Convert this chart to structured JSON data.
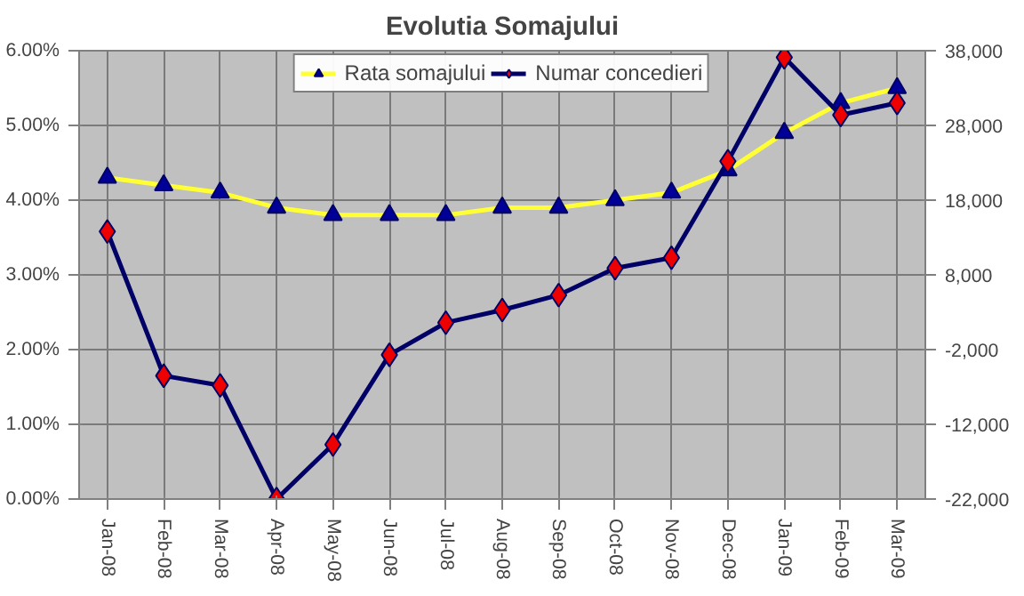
{
  "chart_data": {
    "type": "line",
    "title": "Evolutia Somajului",
    "categories": [
      "Jan-08",
      "Feb-08",
      "Mar-08",
      "Apr-08",
      "May-08",
      "Jun-08",
      "Jul-08",
      "Aug-08",
      "Sep-08",
      "Oct-08",
      "Nov-08",
      "Dec-08",
      "Jan-09",
      "Feb-09",
      "Mar-09"
    ],
    "series": [
      {
        "name": "Rata somajului",
        "color": "#ffff33",
        "marker": "triangle",
        "values": [
          4.3,
          4.2,
          4.1,
          3.9,
          3.8,
          3.8,
          3.8,
          3.9,
          3.9,
          4.0,
          4.1,
          4.4,
          4.9,
          5.3,
          5.5
        ]
      },
      {
        "name": "Numar concedieri",
        "color": "#000066",
        "marker": "diamond",
        "axis": "y2",
        "values": [
          13800,
          -5500,
          -6800,
          -22000,
          -14700,
          -2700,
          1600,
          3300,
          5300,
          8900,
          10300,
          23200,
          37100,
          29400,
          31000
        ]
      }
    ],
    "ylim": [
      0,
      6
    ],
    "yticks": [
      {
        "value": 0,
        "label": "0.00%"
      },
      {
        "value": 1,
        "label": "1.00%"
      },
      {
        "value": 2,
        "label": "2.00%"
      },
      {
        "value": 3,
        "label": "3.00%"
      },
      {
        "value": 4,
        "label": "4.00%"
      },
      {
        "value": 5,
        "label": "5.00%"
      },
      {
        "value": 6,
        "label": "6.00%"
      }
    ],
    "y2lim": [
      -22000,
      38000
    ],
    "y2ticks": [
      {
        "value": -22000,
        "label": "-22,000"
      },
      {
        "value": -12000,
        "label": "-12,000"
      },
      {
        "value": -2000,
        "label": "-2,000"
      },
      {
        "value": 8000,
        "label": "8,000"
      },
      {
        "value": 18000,
        "label": "18,000"
      },
      {
        "value": 28000,
        "label": "28,000"
      },
      {
        "value": 38000,
        "label": "38,000"
      }
    ],
    "grid": true,
    "legend": "top"
  }
}
